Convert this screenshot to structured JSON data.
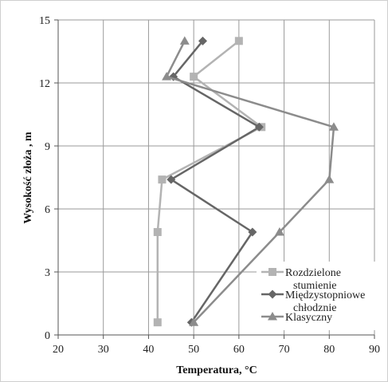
{
  "chart_data": {
    "type": "line",
    "xlabel": "Temperatura, °C",
    "ylabel": "Wysokość złoża , m",
    "xlim": [
      20,
      90
    ],
    "ylim": [
      0,
      15
    ],
    "xticks": [
      "20",
      "30",
      "40",
      "50",
      "60",
      "70",
      "80",
      "90"
    ],
    "yticks": [
      "0",
      "3",
      "6",
      "9",
      "12",
      "15"
    ],
    "grid": true,
    "legend_position": "bottom-right",
    "series": [
      {
        "name": "Rozdzielone stumienie",
        "color": "#b3b3b3",
        "marker": "square",
        "points": [
          [
            42,
            0.6
          ],
          [
            42,
            4.9
          ],
          [
            43,
            7.4
          ],
          [
            65,
            9.9
          ],
          [
            50,
            12.3
          ],
          [
            60,
            14.0
          ]
        ]
      },
      {
        "name": "Międzystopniowe chłodznie",
        "color": "#666666",
        "marker": "diamond",
        "points": [
          [
            49.5,
            0.6
          ],
          [
            63,
            4.9
          ],
          [
            45,
            7.4
          ],
          [
            64.5,
            9.9
          ],
          [
            45.5,
            12.3
          ],
          [
            52,
            14.0
          ]
        ]
      },
      {
        "name": "Klasyczny",
        "color": "#8c8c8c",
        "marker": "triangle",
        "points": [
          [
            50,
            0.6
          ],
          [
            69,
            4.9
          ],
          [
            80,
            7.4
          ],
          [
            81,
            9.9
          ],
          [
            44,
            12.3
          ],
          [
            48,
            14.0
          ]
        ]
      }
    ]
  }
}
